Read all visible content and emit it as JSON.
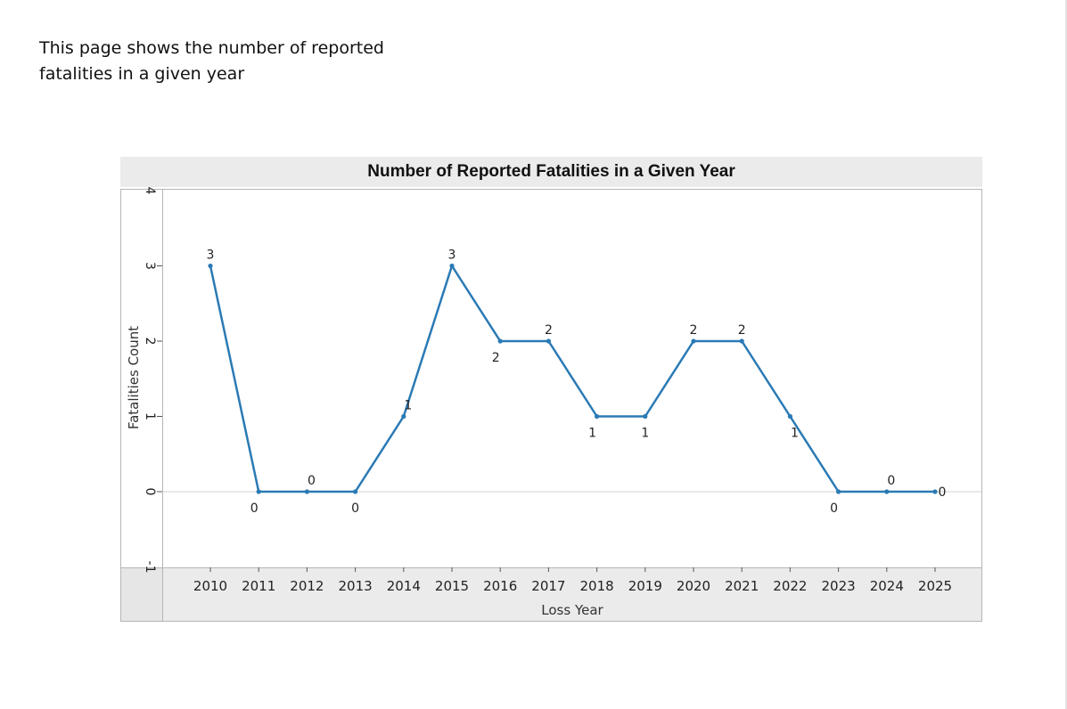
{
  "intro_text": "This page shows the number of reported fatalities in a given year",
  "chart_data": {
    "type": "line",
    "title": "Number of Reported Fatalities in a Given Year",
    "xlabel": "Loss Year",
    "ylabel": "Fatalities Count",
    "x": [
      "2010",
      "2011",
      "2012",
      "2013",
      "2014",
      "2015",
      "2016",
      "2017",
      "2018",
      "2019",
      "2020",
      "2021",
      "2022",
      "2023",
      "2024",
      "2025"
    ],
    "y": [
      3,
      0,
      0,
      0,
      1,
      3,
      2,
      2,
      1,
      1,
      2,
      2,
      1,
      0,
      0,
      0
    ],
    "yticks": [
      "-1",
      "0",
      "1",
      "2",
      "3",
      "4"
    ],
    "ylim": [
      -1,
      4
    ],
    "series_color": "#2a7ab5",
    "grid": "horizontal line at 0",
    "data_labels": true,
    "legend": "none"
  }
}
